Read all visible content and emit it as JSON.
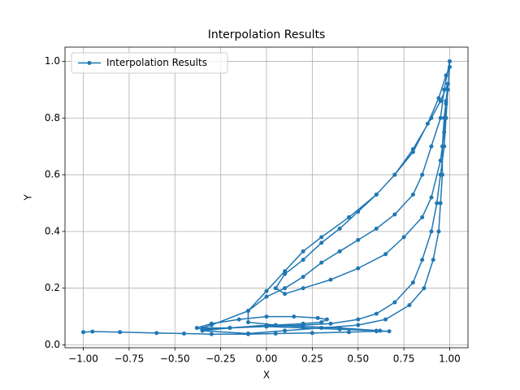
{
  "chart_data": {
    "type": "line",
    "title": "Interpolation Results",
    "x_label": "X",
    "y_label": "Y",
    "xlim": [
      -1.1,
      1.1
    ],
    "ylim": [
      -0.01,
      1.05
    ],
    "xticks": [
      {
        "value": -1.0,
        "label": "−1.00"
      },
      {
        "value": -0.75,
        "label": "−0.75"
      },
      {
        "value": -0.5,
        "label": "−0.50"
      },
      {
        "value": -0.25,
        "label": "−0.25"
      },
      {
        "value": 0,
        "label": "0.00"
      },
      {
        "value": 0.25,
        "label": "0.25"
      },
      {
        "value": 0.5,
        "label": "0.50"
      },
      {
        "value": 0.75,
        "label": "0.75"
      },
      {
        "value": 1.0,
        "label": "1.00"
      }
    ],
    "yticks": [
      {
        "value": 0,
        "label": "0.0"
      },
      0.2,
      0.4,
      0.6,
      0.8,
      {
        "value": 1.0,
        "label": "1.0"
      }
    ],
    "grid": true,
    "legend": "upper left",
    "series": [
      {
        "name": "Interpolation Results",
        "color": "#1f77b4",
        "x": [
          -1,
          -0.95,
          -0.8,
          -0.6,
          -0.45,
          -0.3,
          -0.1,
          0.05,
          0.25,
          0.45,
          0.6,
          0.67,
          0.6,
          0.4,
          0.2,
          0,
          -0.2,
          -0.35,
          -0.38,
          -0.3,
          -0.15,
          0,
          0.15,
          0.28,
          0.33,
          0.3,
          0.2,
          0.05,
          -0.1,
          -0.1,
          0,
          0.1,
          0.2,
          0.3,
          0.4,
          0.5,
          0.6,
          0.7,
          0.8,
          0.85,
          0.9,
          0.95,
          0.97,
          1,
          0.99,
          0.98,
          0.97,
          0.95,
          0.93,
          0.9,
          0.85,
          0.8,
          0.7,
          0.6,
          0.5,
          0.35,
          0.2,
          0,
          -0.2,
          -0.35,
          -0.3,
          -0.1,
          0,
          0.1,
          0.2,
          0.3,
          0.45,
          0.6,
          0.7,
          0.8,
          0.88,
          0.94,
          0.98,
          1,
          0.98,
          0.97,
          0.95,
          0.9,
          0.85,
          0.75,
          0.65,
          0.5,
          0.35,
          0.2,
          0.1,
          0.05,
          0.1,
          0.2,
          0.3,
          0.4,
          0.5,
          0.6,
          0.7,
          0.8,
          0.9,
          0.95,
          0.99,
          0.98,
          0.97,
          0.96,
          0.96,
          0.95,
          0.94,
          0.91,
          0.86,
          0.78,
          0.65,
          0.5,
          0.3,
          0.1,
          -0.1,
          -0.35,
          -0.2,
          0,
          0.2,
          0.4,
          0.62
        ],
        "values": [
          0.045,
          0.047,
          0.045,
          0.042,
          0.04,
          0.038,
          0.038,
          0.04,
          0.042,
          0.045,
          0.048,
          0.048,
          0.05,
          0.055,
          0.06,
          0.065,
          0.06,
          0.055,
          0.06,
          0.075,
          0.09,
          0.1,
          0.1,
          0.095,
          0.09,
          0.08,
          0.075,
          0.07,
          0.08,
          0.12,
          0.17,
          0.2,
          0.24,
          0.29,
          0.33,
          0.37,
          0.41,
          0.46,
          0.53,
          0.6,
          0.7,
          0.8,
          0.9,
          1,
          0.9,
          0.8,
          0.7,
          0.6,
          0.5,
          0.4,
          0.3,
          0.22,
          0.15,
          0.11,
          0.09,
          0.075,
          0.07,
          0.065,
          0.06,
          0.06,
          0.07,
          0.12,
          0.19,
          0.26,
          0.33,
          0.38,
          0.45,
          0.53,
          0.6,
          0.68,
          0.78,
          0.87,
          0.95,
          0.98,
          0.85,
          0.75,
          0.65,
          0.52,
          0.45,
          0.38,
          0.32,
          0.27,
          0.23,
          0.2,
          0.18,
          0.2,
          0.25,
          0.3,
          0.36,
          0.41,
          0.47,
          0.53,
          0.6,
          0.69,
          0.8,
          0.86,
          0.92,
          0.86,
          0.8,
          0.7,
          0.6,
          0.5,
          0.4,
          0.3,
          0.2,
          0.14,
          0.09,
          0.07,
          0.06,
          0.05,
          0.04,
          0.05,
          0.06,
          0.07,
          0.065,
          0.06,
          0.05
        ]
      }
    ]
  }
}
